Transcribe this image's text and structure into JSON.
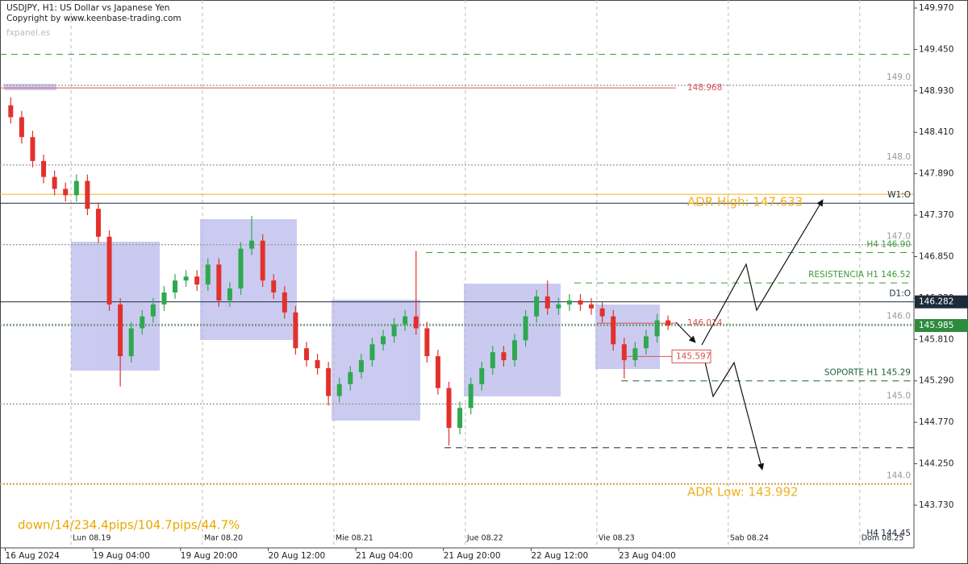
{
  "chart_data": {
    "type": "candlestick",
    "title": "USDJPY, H1:  US Dollar vs Japanese Yen",
    "subtitle": "Copyright by www.keenbase-trading.com",
    "watermark": "fxpanel.es",
    "stats": "down/14/234.4pips/104.7pips/44.7%",
    "up_color": "#2fa84f",
    "down_color": "#e2312d",
    "xlim": [
      -12.96,
      153.9
    ],
    "ylim": [
      143.194,
      150.071
    ],
    "x": [
      -11,
      -9,
      -7,
      -5,
      -3,
      -1,
      1,
      3,
      5,
      7,
      9,
      11,
      13,
      15,
      17,
      19,
      21,
      23,
      25,
      27,
      29,
      31,
      33,
      35,
      37,
      39,
      41,
      43,
      45,
      47,
      49,
      51,
      53,
      55,
      57,
      59,
      61,
      63,
      65,
      67,
      69,
      71,
      73,
      75,
      77,
      79,
      81,
      83,
      85,
      87,
      89,
      91,
      93,
      95,
      97,
      99,
      101,
      103,
      105,
      107,
      109
    ],
    "open": [
      148.75,
      148.6,
      148.35,
      148.05,
      147.85,
      147.7,
      147.62,
      147.8,
      147.45,
      147.1,
      146.25,
      145.6,
      145.95,
      146.1,
      146.25,
      146.4,
      146.55,
      146.6,
      146.5,
      146.75,
      146.3,
      146.45,
      146.95,
      147.05,
      146.55,
      146.4,
      146.15,
      145.7,
      145.55,
      145.45,
      145.1,
      145.25,
      145.4,
      145.55,
      145.75,
      145.85,
      146.0,
      146.1,
      145.95,
      145.6,
      145.2,
      144.7,
      144.95,
      145.25,
      145.45,
      145.65,
      145.55,
      145.8,
      146.1,
      146.35,
      146.2,
      146.25,
      146.3,
      146.25,
      146.2,
      146.1,
      145.75,
      145.55,
      145.7,
      145.85,
      146.05
    ],
    "high": [
      148.85,
      148.68,
      148.43,
      148.13,
      147.93,
      147.78,
      147.88,
      147.88,
      147.53,
      147.18,
      146.33,
      146.03,
      146.18,
      146.33,
      146.48,
      146.63,
      146.68,
      146.68,
      146.83,
      146.83,
      146.53,
      147.03,
      147.36,
      147.13,
      146.63,
      146.48,
      146.23,
      145.78,
      145.63,
      145.53,
      145.33,
      145.48,
      145.63,
      145.83,
      145.93,
      146.08,
      146.18,
      146.92,
      146.03,
      145.68,
      145.28,
      145.03,
      145.33,
      145.53,
      145.73,
      145.73,
      145.88,
      146.18,
      146.43,
      146.55,
      146.33,
      146.38,
      146.38,
      146.33,
      146.28,
      146.18,
      145.83,
      145.78,
      145.93,
      146.13,
      146.11
    ],
    "low": [
      148.52,
      148.27,
      147.97,
      147.77,
      147.62,
      147.54,
      147.54,
      147.37,
      147.02,
      146.17,
      145.22,
      145.52,
      145.87,
      146.02,
      146.17,
      146.32,
      146.47,
      146.42,
      146.42,
      146.22,
      146.22,
      146.37,
      146.87,
      146.47,
      146.32,
      146.07,
      145.62,
      145.47,
      145.37,
      144.98,
      145.02,
      145.17,
      145.32,
      145.47,
      145.67,
      145.77,
      145.92,
      145.87,
      145.52,
      145.12,
      144.48,
      144.62,
      144.87,
      145.17,
      145.37,
      145.47,
      145.47,
      145.72,
      146.02,
      146.12,
      146.12,
      146.17,
      146.17,
      146.12,
      146.02,
      145.67,
      145.32,
      145.47,
      145.62,
      145.77,
      145.93
    ],
    "close": [
      148.6,
      148.35,
      148.05,
      147.85,
      147.7,
      147.62,
      147.8,
      147.45,
      147.1,
      146.25,
      145.6,
      145.95,
      146.1,
      146.25,
      146.4,
      146.55,
      146.6,
      146.5,
      146.75,
      146.3,
      146.45,
      146.95,
      147.05,
      146.55,
      146.4,
      146.15,
      145.7,
      145.55,
      145.45,
      145.1,
      145.25,
      145.4,
      145.55,
      145.75,
      145.85,
      146.0,
      146.1,
      145.95,
      145.6,
      145.2,
      144.7,
      144.95,
      145.25,
      145.45,
      145.65,
      145.55,
      145.8,
      146.1,
      146.35,
      146.2,
      146.25,
      146.3,
      146.25,
      146.2,
      146.1,
      145.75,
      145.55,
      145.7,
      145.85,
      146.05,
      145.985
    ],
    "last_color": "#2e8b3e",
    "yticks": [
      {
        "value": 149.97,
        "label": "149.970"
      },
      {
        "value": 149.45,
        "label": "149.450"
      },
      {
        "value": 148.93,
        "label": "148.930"
      },
      {
        "value": 148.41,
        "label": "148.410"
      },
      {
        "value": 147.89,
        "label": "147.890"
      },
      {
        "value": 147.37,
        "label": "147.370"
      },
      {
        "value": 146.85,
        "label": "146.850"
      },
      {
        "value": 146.33,
        "label": "146.330"
      },
      {
        "value": 145.81,
        "label": "145.810"
      },
      {
        "value": 145.29,
        "label": "145.290"
      },
      {
        "value": 144.77,
        "label": "144.770"
      },
      {
        "value": 144.25,
        "label": "144.250"
      },
      {
        "value": 143.73,
        "label": "143.730"
      }
    ],
    "xticks": [
      {
        "value": -12,
        "label": "16 Aug 2024"
      },
      {
        "value": 4,
        "label": "19 Aug 04:00"
      },
      {
        "value": 20,
        "label": "19 Aug 20:00"
      },
      {
        "value": 36,
        "label": "20 Aug 12:00"
      },
      {
        "value": 52,
        "label": "21 Aug 04:00"
      },
      {
        "value": 68,
        "label": "21 Aug 20:00"
      },
      {
        "value": 84,
        "label": "22 Aug 12:00"
      },
      {
        "value": 100,
        "label": "23 Aug 04:00"
      }
    ],
    "days": [
      {
        "value": 0,
        "label": "Lun 08.19"
      },
      {
        "value": 24,
        "label": "Mar 08.20"
      },
      {
        "value": 48,
        "label": "Mie 08.21"
      },
      {
        "value": 72,
        "label": "Jue 08.22"
      },
      {
        "value": 96,
        "label": "Vie 08.23"
      },
      {
        "value": 120,
        "label": "Sab 08.24"
      },
      {
        "value": 144,
        "label": "Dom 08.25"
      }
    ],
    "levels": [
      {
        "value": 149.39,
        "color": "#3a9a3a",
        "dash": "dashed"
      },
      {
        "value": 149.0,
        "label": "149.0",
        "color": "#999999",
        "dash": "dotted",
        "label_at": "right"
      },
      {
        "value": 148.968,
        "color": "#d9534f",
        "dash": "solid",
        "x_range": [
          -12.96,
          110.4
        ],
        "label_at": "left"
      },
      {
        "value": 148.0,
        "label": "148.0",
        "color": "#999999",
        "dash": "dotted",
        "label_at": "right"
      },
      {
        "value": 147.633,
        "label": "ADR High: 147.633",
        "color": "#f0b020",
        "dash": "solid",
        "label_at": "left",
        "emphasis": true
      },
      {
        "value": 147.52,
        "label": "W1:O",
        "color": "#1c2b3a",
        "dash": "solid",
        "label_at": "right"
      },
      {
        "value": 147.0,
        "label": "147.0",
        "color": "#999999",
        "dash": "dotted",
        "label_at": "right"
      },
      {
        "value": 146.9,
        "label": "H4 146.90",
        "color": "#3a9a3a",
        "dash": "dashed",
        "x_range": [
          64.8,
          153.9
        ],
        "label_at": "right"
      },
      {
        "value": 146.52,
        "label": "RESISTENCIA H1 146.52",
        "color": "#3a9a3a",
        "dash": "dashed",
        "x_range": [
          91.9,
          153.9
        ],
        "label_at": "right"
      },
      {
        "value": 146.282,
        "label": "D1:O",
        "color": "#1c2b3a",
        "dash": "solid",
        "label_at": "right",
        "axis_box": true
      },
      {
        "value": 146.0,
        "label": "146.0",
        "color": "#999999",
        "dash": "dotted",
        "label_at": "right"
      },
      {
        "value": 146.014,
        "color": "#d9534f",
        "dash": "solid",
        "x_range": [
          96,
          110.4
        ],
        "label_at": "left"
      },
      {
        "value": 145.597,
        "color": "#d9534f",
        "dash": "solid",
        "x_range": [
          101,
          110.4
        ],
        "label_at": "left",
        "boxed": true
      },
      {
        "value": 145.29,
        "label": "SOPORTE H1 145.29",
        "color": "#1f5f3a",
        "dash": "dashed",
        "x_range": [
          100.5,
          153.9
        ],
        "label_at": "right"
      },
      {
        "value": 145.0,
        "label": "145.0",
        "color": "#999999",
        "dash": "dotted",
        "label_at": "right"
      },
      {
        "value": 144.45,
        "label": "H4 144.45",
        "color": "#1c2b3a",
        "dash": "dashed",
        "x_range": [
          68.2,
          153.9
        ],
        "label_at": "bottom"
      },
      {
        "value": 144.0,
        "label": "144.0",
        "color": "#999999",
        "dash": "dotted",
        "label_at": "right"
      },
      {
        "value": 143.992,
        "label": "ADR Low: 143.992",
        "color": "#f0b020",
        "dash": "dotted",
        "label_at": "left",
        "emphasis": true
      }
    ]
  }
}
